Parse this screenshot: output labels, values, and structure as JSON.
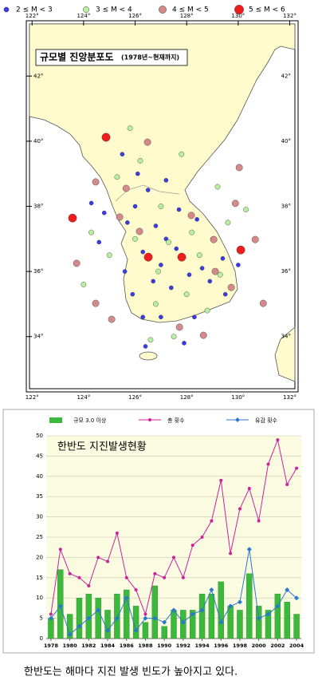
{
  "chart_data": [
    {
      "type": "scatter",
      "title": "규모별 진앙분포도",
      "subtitle": "(1978년~현재까지)",
      "xlim": [
        121.9,
        132.2
      ],
      "ylim": [
        32.4,
        43.6
      ],
      "xticks": [
        {
          "value": 122,
          "label": "122°"
        },
        {
          "value": 124,
          "label": "124°"
        },
        {
          "value": 126,
          "label": "126°"
        },
        {
          "value": 128,
          "label": "128°"
        },
        {
          "value": 130,
          "label": "130°"
        },
        {
          "value": 132,
          "label": "132°"
        }
      ],
      "yticks": [
        {
          "value": 34,
          "label": "34°"
        },
        {
          "value": 36,
          "label": "36°"
        },
        {
          "value": 38,
          "label": "38°"
        },
        {
          "value": 40,
          "label": "40°"
        },
        {
          "value": 42,
          "label": "42°"
        }
      ],
      "series": [
        {
          "name": "2 ≤ M < 3",
          "color": "#3a3ae6",
          "x": [
            126.5,
            126.0,
            125.7,
            126.8,
            127.2,
            127.6,
            127.0,
            126.7,
            127.4,
            128.1,
            128.6,
            128.9,
            129.4,
            128.4,
            127.7,
            126.3,
            125.6,
            124.8,
            124.6,
            125.9,
            126.3,
            127.0,
            128.3,
            129.5,
            130.0,
            126.1,
            125.5,
            127.2,
            124.3,
            129.0,
            126.4,
            127.9
          ],
          "y": [
            38.5,
            38.0,
            37.5,
            37.4,
            37.0,
            36.7,
            36.2,
            35.7,
            35.5,
            35.9,
            36.1,
            35.7,
            36.4,
            37.6,
            37.9,
            36.6,
            36.0,
            37.8,
            36.9,
            35.3,
            34.6,
            34.6,
            34.6,
            35.3,
            36.2,
            39.0,
            39.6,
            38.8,
            38.1,
            37.0,
            33.7,
            33.8
          ]
        },
        {
          "name": "3 ≤ M < 4",
          "color": "#b8f0a0",
          "x": [
            126.2,
            125.3,
            127.0,
            126.0,
            127.3,
            128.5,
            129.3,
            128.0,
            126.8,
            125.0,
            124.3,
            129.6,
            130.3,
            126.6,
            127.5,
            128.8,
            125.8,
            127.8,
            129.2,
            124.0,
            126.9,
            128.2
          ],
          "y": [
            39.4,
            38.9,
            38.0,
            37.0,
            36.9,
            36.5,
            35.9,
            35.3,
            35.0,
            36.5,
            37.2,
            37.5,
            37.9,
            33.9,
            34.0,
            34.8,
            40.4,
            39.6,
            38.6,
            35.6,
            36.0,
            37.2
          ]
        },
        {
          "name": "4 ≤ M < 5",
          "color": "#d48a8a",
          "x": [
            124.47,
            125.65,
            125.4,
            126.17,
            128.18,
            129.05,
            129.89,
            130.66,
            130.97,
            124.47,
            125.09,
            123.73,
            129.11,
            129.73,
            127.72,
            128.65,
            126.48,
            130.04
          ],
          "y": [
            38.75,
            38.55,
            37.67,
            37.23,
            37.72,
            36.98,
            38.09,
            36.98,
            35.02,
            35.02,
            34.53,
            36.25,
            36.0,
            35.51,
            34.29,
            34.04,
            39.97,
            39.19
          ]
        },
        {
          "name": "5 ≤ M < 6",
          "color": "#ee1c1c",
          "x": [
            124.87,
            123.57,
            126.51,
            127.81,
            130.1
          ],
          "y": [
            40.12,
            37.64,
            36.44,
            36.44,
            36.66
          ]
        }
      ]
    },
    {
      "type": "combo",
      "title": "한반도 지진발생현황",
      "x": [
        1978,
        1979,
        1980,
        1981,
        1982,
        1983,
        1984,
        1985,
        1986,
        1987,
        1988,
        1989,
        1990,
        1991,
        1992,
        1993,
        1994,
        1995,
        1996,
        1997,
        1998,
        1999,
        2000,
        2001,
        2002,
        2003,
        2004
      ],
      "xlim": [
        1977.5,
        2004.5
      ],
      "xticks": [
        1978,
        1980,
        1982,
        1984,
        1986,
        1988,
        1990,
        1992,
        1994,
        1996,
        1998,
        2000,
        2002,
        2004
      ],
      "ylim": [
        0,
        50
      ],
      "yticks": [
        0,
        5,
        10,
        15,
        20,
        25,
        30,
        35,
        40,
        45,
        50
      ],
      "grid": true,
      "series": [
        {
          "name": "규모 3.0 이상",
          "type": "bar",
          "color": "#3cb83c",
          "values": [
            5,
            17,
            6,
            10,
            11,
            10,
            7,
            11,
            12,
            8,
            4,
            13,
            3,
            7,
            7,
            7,
            11,
            11,
            14,
            8,
            7,
            16,
            8,
            7,
            11,
            9,
            6
          ]
        },
        {
          "name": "총 횟수",
          "type": "line",
          "marker": "circle",
          "color": "#cc2299",
          "values": [
            6,
            22,
            16,
            15,
            13,
            20,
            19,
            26,
            15,
            12,
            6,
            16,
            15,
            20,
            15,
            23,
            25,
            29,
            39,
            21,
            32,
            37,
            29,
            43,
            49,
            38,
            42
          ]
        },
        {
          "name": "유감 횟수",
          "type": "line",
          "marker": "diamond",
          "color": "#2a78cc",
          "values": [
            5,
            8,
            1,
            3,
            5,
            7,
            2,
            5,
            10,
            2,
            5,
            5,
            4,
            7,
            4,
            6,
            7,
            12,
            4,
            8,
            9,
            22,
            5,
            6,
            8,
            12,
            10
          ]
        }
      ]
    }
  ],
  "caption": "한반도는 해마다 지진 발생 빈도가 높아지고 있다."
}
